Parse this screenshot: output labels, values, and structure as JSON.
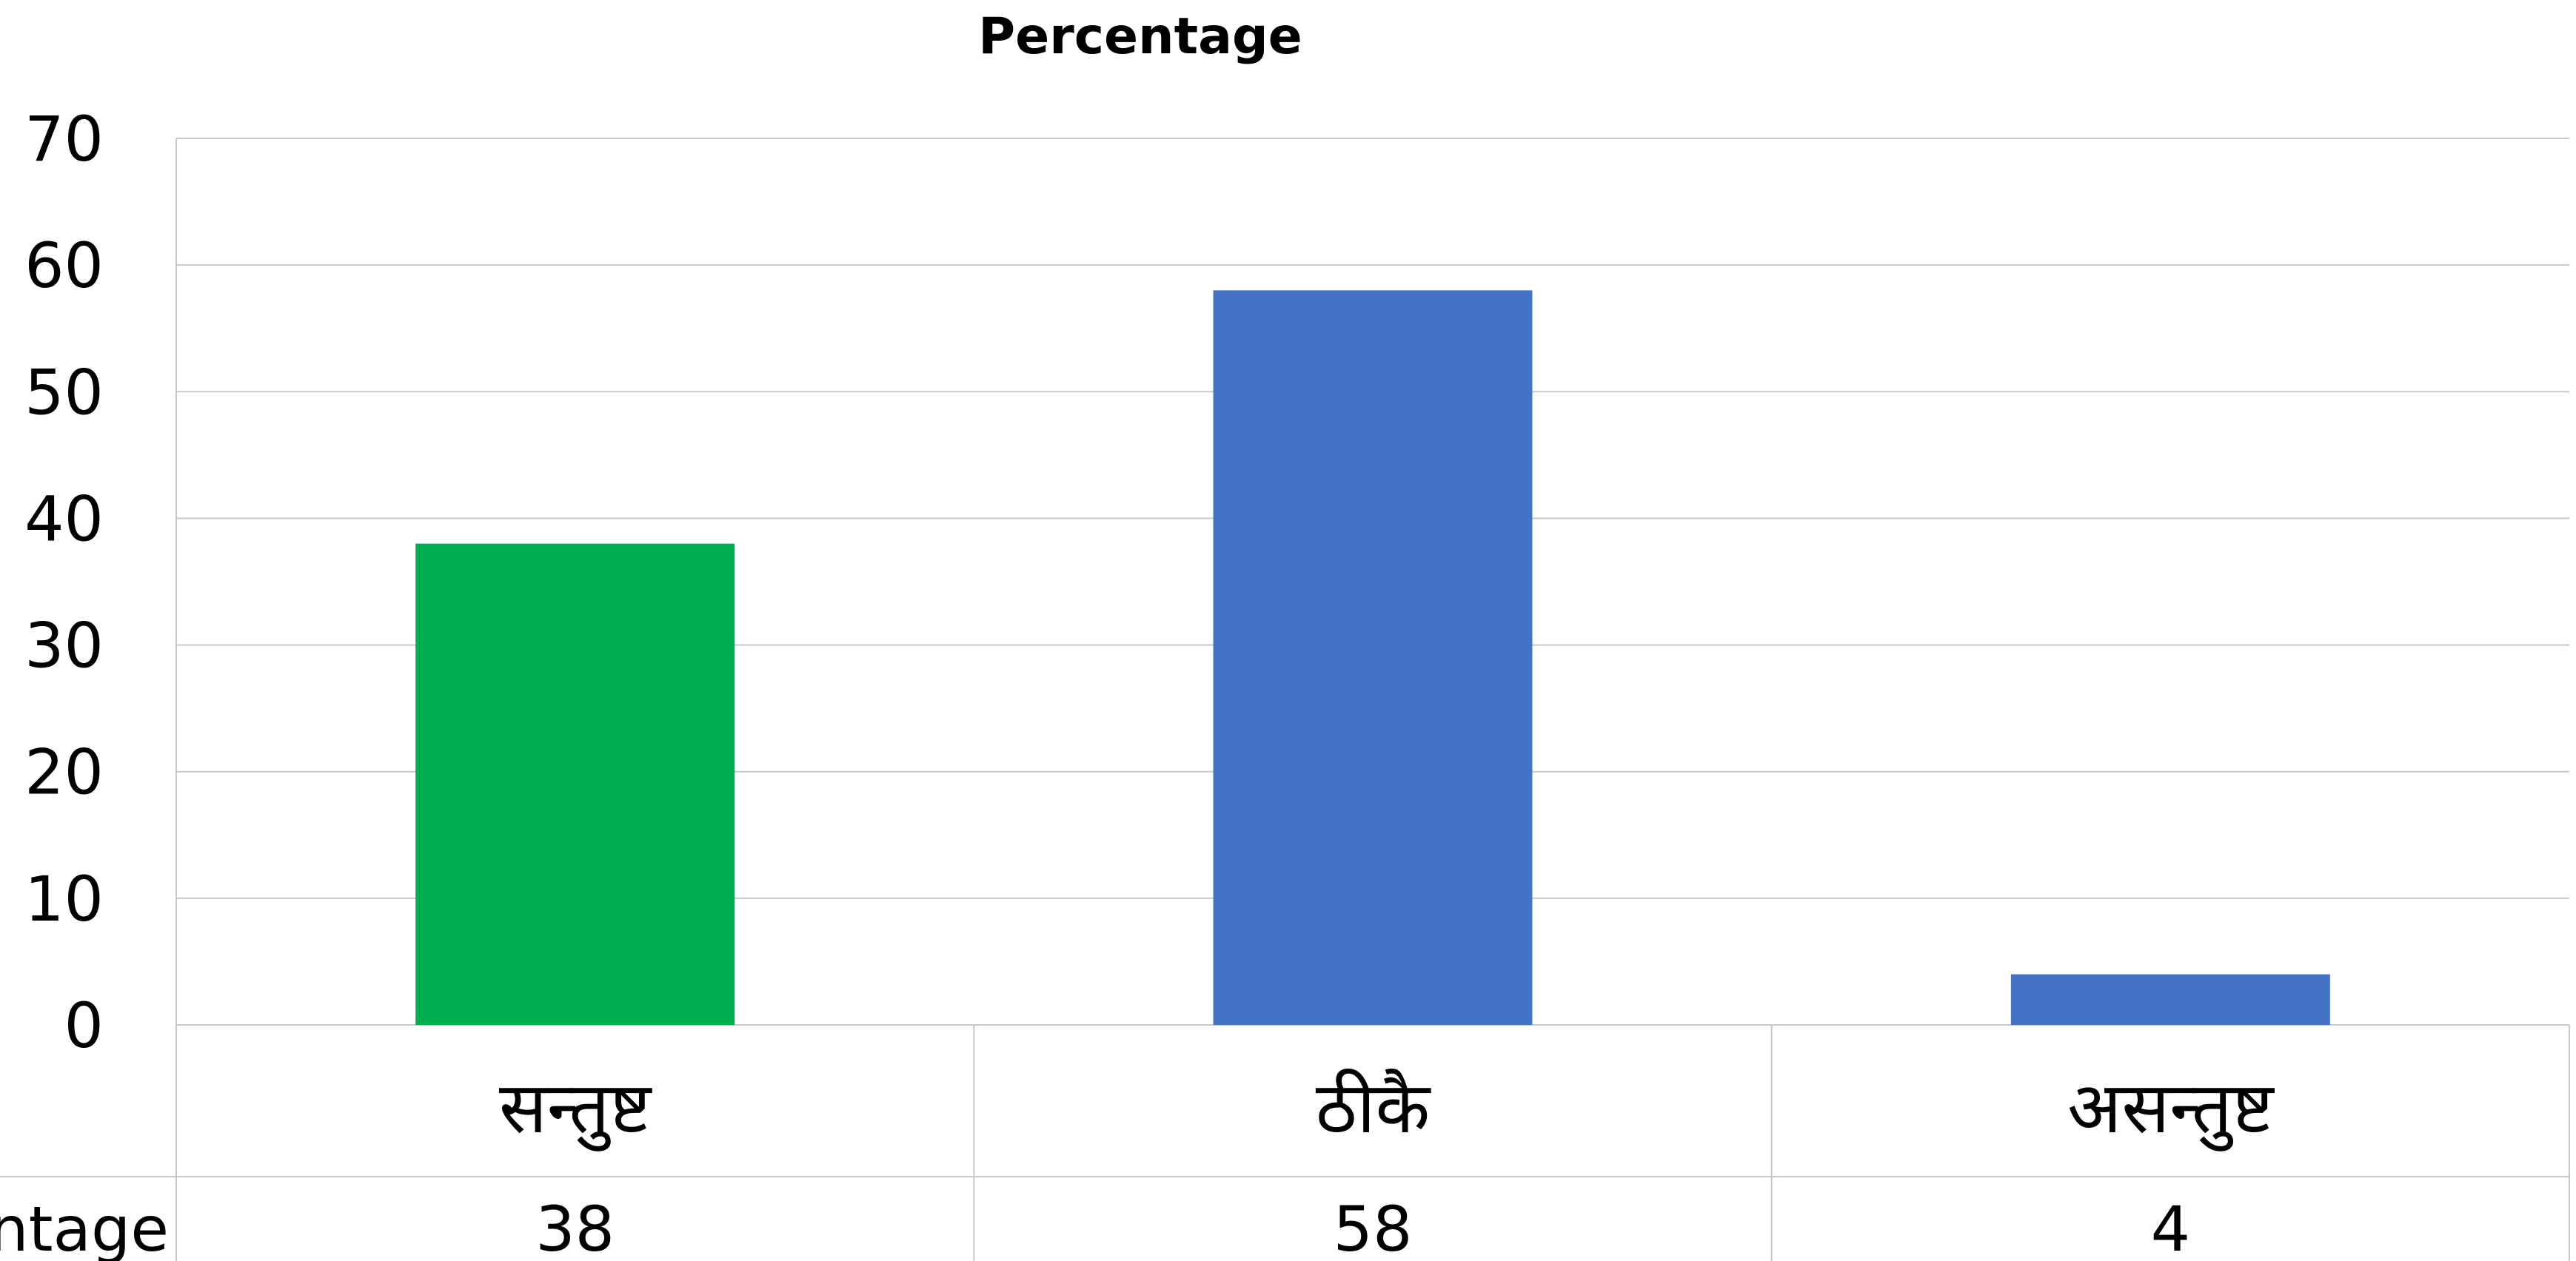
{
  "chart_data": {
    "type": "bar",
    "title": "Percentage",
    "categories": [
      "सन्तुष्ट",
      "ठीकै",
      "असन्तुष्ट"
    ],
    "values": [
      38,
      58,
      4
    ],
    "bar_colors": [
      "#00B050",
      "#4472C4",
      "#4472C4"
    ],
    "ylim": [
      0,
      70
    ],
    "yticks": [
      0,
      10,
      20,
      30,
      40,
      50,
      60,
      70
    ],
    "grid": true,
    "data_table": {
      "row_label": "Percentage",
      "values": [
        "38",
        "58",
        "4"
      ]
    }
  }
}
